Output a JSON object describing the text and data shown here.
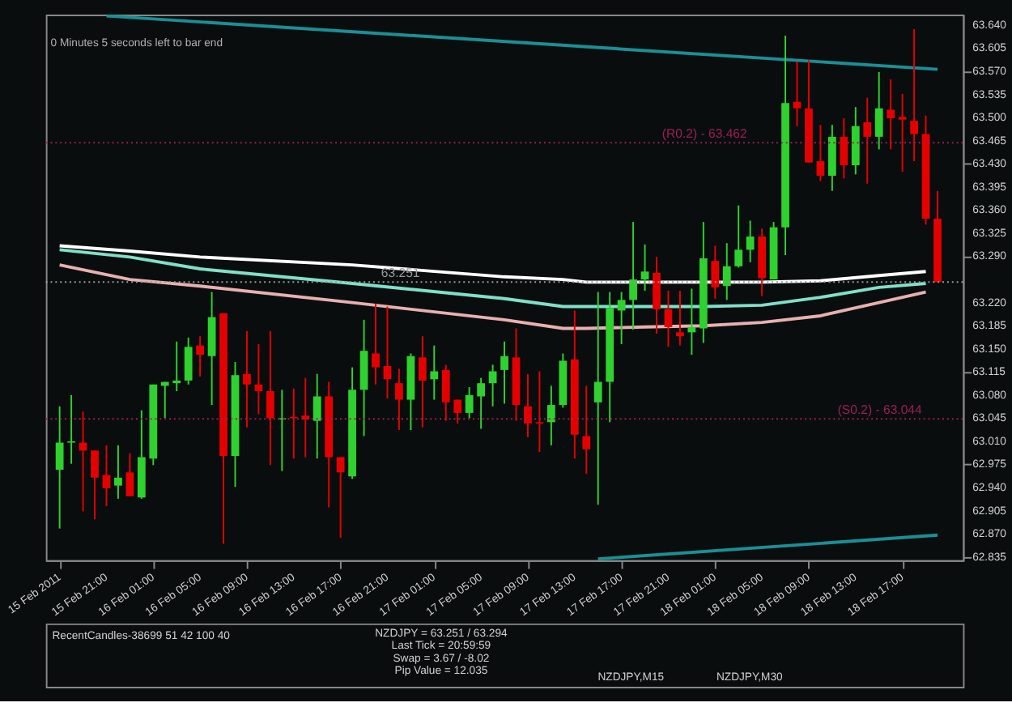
{
  "chart_data": [
    {
      "type": "candlestick",
      "x": [
        "2011-02-15T17:00",
        "2011-02-15T18:00",
        "2011-02-15T19:00",
        "2011-02-15T20:00",
        "2011-02-15T21:00",
        "2011-02-15T22:00",
        "2011-02-15T23:00",
        "2011-02-16T00:00",
        "2011-02-16T01:00",
        "2011-02-16T02:00",
        "2011-02-16T03:00",
        "2011-02-16T04:00",
        "2011-02-16T05:00",
        "2011-02-16T06:00",
        "2011-02-16T07:00",
        "2011-02-16T08:00",
        "2011-02-16T09:00",
        "2011-02-16T10:00",
        "2011-02-16T11:00",
        "2011-02-16T12:00",
        "2011-02-16T13:00",
        "2011-02-16T14:00",
        "2011-02-16T15:00",
        "2011-02-16T16:00",
        "2011-02-16T17:00",
        "2011-02-16T18:00",
        "2011-02-16T19:00",
        "2011-02-16T20:00",
        "2011-02-16T21:00",
        "2011-02-16T22:00",
        "2011-02-16T23:00",
        "2011-02-17T00:00",
        "2011-02-17T01:00",
        "2011-02-17T02:00",
        "2011-02-17T03:00",
        "2011-02-17T04:00",
        "2011-02-17T05:00",
        "2011-02-17T06:00",
        "2011-02-17T07:00",
        "2011-02-17T08:00",
        "2011-02-17T09:00",
        "2011-02-17T10:00",
        "2011-02-17T11:00",
        "2011-02-17T12:00",
        "2011-02-17T13:00",
        "2011-02-17T14:00",
        "2011-02-17T15:00",
        "2011-02-17T16:00",
        "2011-02-17T17:00",
        "2011-02-17T18:00",
        "2011-02-17T19:00",
        "2011-02-17T20:00",
        "2011-02-17T21:00",
        "2011-02-17T22:00",
        "2011-02-17T23:00",
        "2011-02-18T00:00",
        "2011-02-18T01:00",
        "2011-02-18T02:00",
        "2011-02-18T03:00",
        "2011-02-18T04:00",
        "2011-02-18T05:00",
        "2011-02-18T06:00",
        "2011-02-18T07:00",
        "2011-02-18T08:00",
        "2011-02-18T09:00",
        "2011-02-18T10:00",
        "2011-02-18T11:00",
        "2011-02-18T12:00",
        "2011-02-18T13:00",
        "2011-02-18T14:00",
        "2011-02-18T15:00",
        "2011-02-18T16:00",
        "2011-02-18T17:00",
        "2011-02-18T18:00",
        "2011-02-18T19:00",
        "2011-02-18T20:00"
      ],
      "ohlc": [
        [
          62.967,
          63.063,
          62.878,
          63.008
        ],
        [
          63.008,
          63.08,
          62.976,
          63.01
        ],
        [
          63.008,
          63.055,
          62.904,
          62.996
        ],
        [
          62.996,
          62.996,
          62.892,
          62.955
        ],
        [
          62.959,
          63.004,
          62.912,
          62.939
        ],
        [
          62.943,
          63.004,
          62.923,
          62.955
        ],
        [
          62.963,
          62.992,
          62.927,
          62.927
        ],
        [
          62.925,
          63.057,
          62.923,
          62.986
        ],
        [
          62.984,
          63.096,
          62.974,
          63.096
        ],
        [
          63.094,
          63.1,
          63.045,
          63.1
        ],
        [
          63.098,
          63.161,
          63.086,
          63.102
        ],
        [
          63.102,
          63.167,
          63.096,
          63.153
        ],
        [
          63.155,
          63.169,
          63.108,
          63.141
        ],
        [
          63.139,
          63.236,
          63.065,
          63.198
        ],
        [
          63.204,
          63.204,
          62.855,
          62.988
        ],
        [
          62.988,
          63.13,
          62.941,
          63.11
        ],
        [
          63.112,
          63.177,
          63.031,
          63.096
        ],
        [
          63.096,
          63.157,
          63.051,
          63.086
        ],
        [
          63.086,
          63.177,
          62.974,
          63.045
        ],
        [
          63.043,
          63.088,
          62.965,
          63.045
        ],
        [
          63.047,
          63.09,
          62.984,
          63.045
        ],
        [
          63.049,
          63.106,
          62.986,
          63.043
        ],
        [
          63.041,
          63.112,
          62.984,
          63.078
        ],
        [
          63.078,
          63.1,
          62.91,
          62.986
        ],
        [
          62.986,
          62.986,
          62.864,
          62.963
        ],
        [
          62.957,
          63.122,
          62.953,
          63.088
        ],
        [
          63.088,
          63.194,
          63.018,
          63.147
        ],
        [
          63.143,
          63.218,
          63.096,
          63.122
        ],
        [
          63.124,
          63.214,
          63.075,
          63.104
        ],
        [
          63.098,
          63.12,
          63.027,
          63.073
        ],
        [
          63.073,
          63.143,
          63.027,
          63.139
        ],
        [
          63.137,
          63.169,
          63.031,
          63.102
        ],
        [
          63.104,
          63.155,
          63.073,
          63.116
        ],
        [
          63.118,
          63.126,
          63.041,
          63.069
        ],
        [
          63.073,
          63.073,
          63.037,
          63.053
        ],
        [
          63.053,
          63.092,
          63.045,
          63.08
        ],
        [
          63.078,
          63.106,
          63.029,
          63.098
        ],
        [
          63.098,
          63.126,
          63.063,
          63.116
        ],
        [
          63.118,
          63.161,
          63.067,
          63.139
        ],
        [
          63.137,
          63.181,
          63.041,
          63.065
        ],
        [
          63.063,
          63.112,
          63.016,
          63.037
        ],
        [
          63.039,
          63.116,
          62.994,
          63.037
        ],
        [
          63.039,
          63.094,
          63.004,
          63.065
        ],
        [
          63.065,
          63.143,
          63.061,
          63.132
        ],
        [
          63.134,
          63.208,
          62.984,
          63.02
        ],
        [
          63.018,
          63.094,
          62.961,
          62.998
        ],
        [
          63.069,
          63.236,
          62.914,
          63.1
        ],
        [
          63.1,
          63.236,
          63.039,
          63.212
        ],
        [
          63.208,
          63.236,
          63.157,
          63.224
        ],
        [
          63.224,
          63.342,
          63.179,
          63.255
        ],
        [
          63.255,
          63.308,
          63.238,
          63.267
        ],
        [
          63.265,
          63.289,
          63.173,
          63.21
        ],
        [
          63.21,
          63.238,
          63.153,
          63.183
        ],
        [
          63.175,
          63.238,
          63.155,
          63.169
        ],
        [
          63.175,
          63.241,
          63.141,
          63.183
        ],
        [
          63.181,
          63.342,
          63.159,
          63.287
        ],
        [
          63.283,
          63.306,
          63.226,
          63.243
        ],
        [
          63.245,
          63.31,
          63.224,
          63.275
        ],
        [
          63.275,
          63.367,
          63.273,
          63.3
        ],
        [
          63.3,
          63.344,
          63.281,
          63.32
        ],
        [
          63.32,
          63.332,
          63.23,
          63.257
        ],
        [
          63.255,
          63.342,
          63.255,
          63.334
        ],
        [
          63.334,
          63.624,
          63.292,
          63.522
        ],
        [
          63.524,
          63.585,
          63.487,
          63.514
        ],
        [
          63.514,
          63.587,
          63.432,
          63.432
        ],
        [
          63.434,
          63.489,
          63.404,
          63.412
        ],
        [
          63.412,
          63.489,
          63.389,
          63.471
        ],
        [
          63.471,
          63.499,
          63.408,
          63.428
        ],
        [
          63.428,
          63.516,
          63.414,
          63.487
        ],
        [
          63.493,
          63.53,
          63.4,
          63.471
        ],
        [
          63.471,
          63.569,
          63.452,
          63.514
        ],
        [
          63.512,
          63.558,
          63.452,
          63.499
        ],
        [
          63.501,
          63.536,
          63.418,
          63.497
        ],
        [
          63.495,
          63.634,
          63.434,
          63.475
        ],
        [
          63.475,
          63.503,
          63.338,
          63.347
        ],
        [
          63.347,
          63.389,
          63.251,
          63.251
        ]
      ],
      "colors": [
        "#2fd12f",
        "#2fd12f",
        "#e50000",
        "#e50000",
        "#e50000",
        "#2fd12f",
        "#e50000",
        "#2fd12f",
        "#2fd12f",
        "#2fd12f",
        "#2fd12f",
        "#2fd12f",
        "#e50000",
        "#2fd12f",
        "#e50000",
        "#2fd12f",
        "#e50000",
        "#e50000",
        "#e50000",
        "#2fd12f",
        "#e50000",
        "#e50000",
        "#2fd12f",
        "#e50000",
        "#e50000",
        "#2fd12f",
        "#2fd12f",
        "#e50000",
        "#e50000",
        "#e50000",
        "#2fd12f",
        "#e50000",
        "#2fd12f",
        "#e50000",
        "#e50000",
        "#2fd12f",
        "#2fd12f",
        "#2fd12f",
        "#2fd12f",
        "#e50000",
        "#e50000",
        "#e50000",
        "#2fd12f",
        "#2fd12f",
        "#e50000",
        "#e50000",
        "#2fd12f",
        "#2fd12f",
        "#2fd12f",
        "#2fd12f",
        "#2fd12f",
        "#e50000",
        "#e50000",
        "#e50000",
        "#2fd12f",
        "#2fd12f",
        "#e50000",
        "#2fd12f",
        "#2fd12f",
        "#2fd12f",
        "#e50000",
        "#2fd12f",
        "#2fd12f",
        "#e50000",
        "#e50000",
        "#e50000",
        "#2fd12f",
        "#e50000",
        "#2fd12f",
        "#e50000",
        "#2fd12f",
        "#e50000",
        "#e50000",
        "#e50000",
        "#e50000",
        "#e50000"
      ],
      "series": [
        {
          "type": "line",
          "color": "#ffffff",
          "x": [
            "2011-02-15T17:00",
            "2011-02-15T23:00",
            "2011-02-16T05:00",
            "2011-02-16T18:00",
            "2011-02-17T07:00",
            "2011-02-17T12:00",
            "2011-02-17T14:00",
            "2011-02-17T19:00",
            "2011-02-18T00:00",
            "2011-02-18T05:00",
            "2011-02-18T10:00",
            "2011-02-18T15:00",
            "2011-02-18T19:00"
          ],
          "values": [
            63.306,
            63.298,
            63.289,
            63.277,
            63.259,
            63.255,
            63.251,
            63.251,
            63.251,
            63.251,
            63.253,
            63.261,
            63.267
          ]
        },
        {
          "type": "line",
          "color": "#7fe0c8",
          "x": [
            "2011-02-15T17:00",
            "2011-02-15T23:00",
            "2011-02-16T05:00",
            "2011-02-16T18:00",
            "2011-02-17T07:00",
            "2011-02-17T12:00",
            "2011-02-17T14:00",
            "2011-02-17T19:00",
            "2011-02-18T00:00",
            "2011-02-18T05:00",
            "2011-02-18T10:00",
            "2011-02-18T15:00",
            "2011-02-18T19:00"
          ],
          "values": [
            63.3,
            63.289,
            63.271,
            63.249,
            63.226,
            63.214,
            63.214,
            63.214,
            63.214,
            63.216,
            63.228,
            63.243,
            63.249
          ]
        },
        {
          "type": "line",
          "color": "#e8b0b0",
          "x": [
            "2011-02-15T17:00",
            "2011-02-15T23:00",
            "2011-02-16T05:00",
            "2011-02-16T18:00",
            "2011-02-17T07:00",
            "2011-02-17T12:00",
            "2011-02-17T14:00",
            "2011-02-17T19:00",
            "2011-02-18T00:00",
            "2011-02-18T05:00",
            "2011-02-18T10:00",
            "2011-02-18T15:00",
            "2011-02-18T19:00"
          ],
          "values": [
            63.277,
            63.255,
            63.245,
            63.22,
            63.194,
            63.181,
            63.181,
            63.183,
            63.185,
            63.19,
            63.2,
            63.22,
            63.236
          ]
        },
        {
          "type": "line",
          "color": "#1a8f96",
          "x": [
            "2011-02-15T21:00",
            "2011-02-18T20:00"
          ],
          "values": [
            63.654,
            63.573
          ]
        },
        {
          "type": "line",
          "color": "#1a8f96",
          "x": [
            "2011-02-17T15:00",
            "2011-02-18T20:00"
          ],
          "values": [
            62.832,
            62.868
          ]
        }
      ],
      "ref_lines": [
        {
          "axis": "y",
          "value": 63.462,
          "label": "(R0.2) - 63.462",
          "color": "#9b2050",
          "line_style": "dotted"
        },
        {
          "axis": "y",
          "value": 63.251,
          "label": "63.251",
          "color": "#9a9a9a",
          "line_style": "dotted"
        },
        {
          "axis": "y",
          "value": 63.044,
          "label": "(S0.2) - 63.044",
          "color": "#9b2050",
          "line_style": "dotted"
        }
      ],
      "annotations": [
        "0 Minutes 5 seconds left to bar end"
      ],
      "xlim": [
        "2011-02-15T16:30",
        "2011-02-18T21:30"
      ],
      "xticks": [
        {
          "value": "2011-02-15T17:00",
          "label": "15 Feb 2011"
        },
        {
          "value": "2011-02-15T21:00",
          "label": "15 Feb 21:00"
        },
        {
          "value": "2011-02-16T01:00",
          "label": "16 Feb 01:00"
        },
        {
          "value": "2011-02-16T05:00",
          "label": "16 Feb 05:00"
        },
        {
          "value": "2011-02-16T09:00",
          "label": "16 Feb 09:00"
        },
        {
          "value": "2011-02-16T13:00",
          "label": "16 Feb 13:00"
        },
        {
          "value": "2011-02-16T17:00",
          "label": "16 Feb 17:00"
        },
        {
          "value": "2011-02-16T21:00",
          "label": "16 Feb 21:00"
        },
        {
          "value": "2011-02-17T01:00",
          "label": "17 Feb 01:00"
        },
        {
          "value": "2011-02-17T05:00",
          "label": "17 Feb 05:00"
        },
        {
          "value": "2011-02-17T09:00",
          "label": "17 Feb 09:00"
        },
        {
          "value": "2011-02-17T13:00",
          "label": "17 Feb 13:00"
        },
        {
          "value": "2011-02-17T17:00",
          "label": "17 Feb 17:00"
        },
        {
          "value": "2011-02-17T21:00",
          "label": "17 Feb 21:00"
        },
        {
          "value": "2011-02-18T01:00",
          "label": "18 Feb 01:00"
        },
        {
          "value": "2011-02-18T05:00",
          "label": "18 Feb 05:00"
        },
        {
          "value": "2011-02-18T09:00",
          "label": "18 Feb 09:00"
        },
        {
          "value": "2011-02-18T13:00",
          "label": "18 Feb 13:00"
        },
        {
          "value": "2011-02-18T17:00",
          "label": "18 Feb 17:00"
        }
      ],
      "ylim": [
        62.83,
        63.656
      ],
      "yticks": [
        {
          "value": 63.64,
          "label": "63.640"
        },
        63.605,
        {
          "value": 63.57,
          "label": "63.570"
        },
        63.535,
        {
          "value": 63.5,
          "label": "63.500"
        },
        63.465,
        {
          "value": 63.43,
          "label": "63.430"
        },
        63.395,
        {
          "value": 63.36,
          "label": "63.360"
        },
        63.325,
        {
          "value": 63.29,
          "label": "63.290"
        },
        {
          "value": 63.22,
          "label": "63.220"
        },
        63.185,
        {
          "value": 63.15,
          "label": "63.150"
        },
        63.115,
        {
          "value": 63.08,
          "label": "63.080"
        },
        63.045,
        {
          "value": 63.01,
          "label": "63.010"
        },
        62.975,
        {
          "value": 62.94,
          "label": "62.940"
        },
        62.905,
        {
          "value": 62.87,
          "label": "62.870"
        },
        62.835
      ],
      "grid": false
    },
    {
      "type": "other",
      "annotations": [
        "RecentCandles-38699 51 42 100 40",
        "NZDJPY = 63.251 / 63.294",
        "Last Tick = 20:59:59",
        "Swap = 3.67 / -8.02",
        "Pip Value = 12.035",
        "NZDJPY,M15",
        "NZDJPY,M30"
      ]
    }
  ]
}
